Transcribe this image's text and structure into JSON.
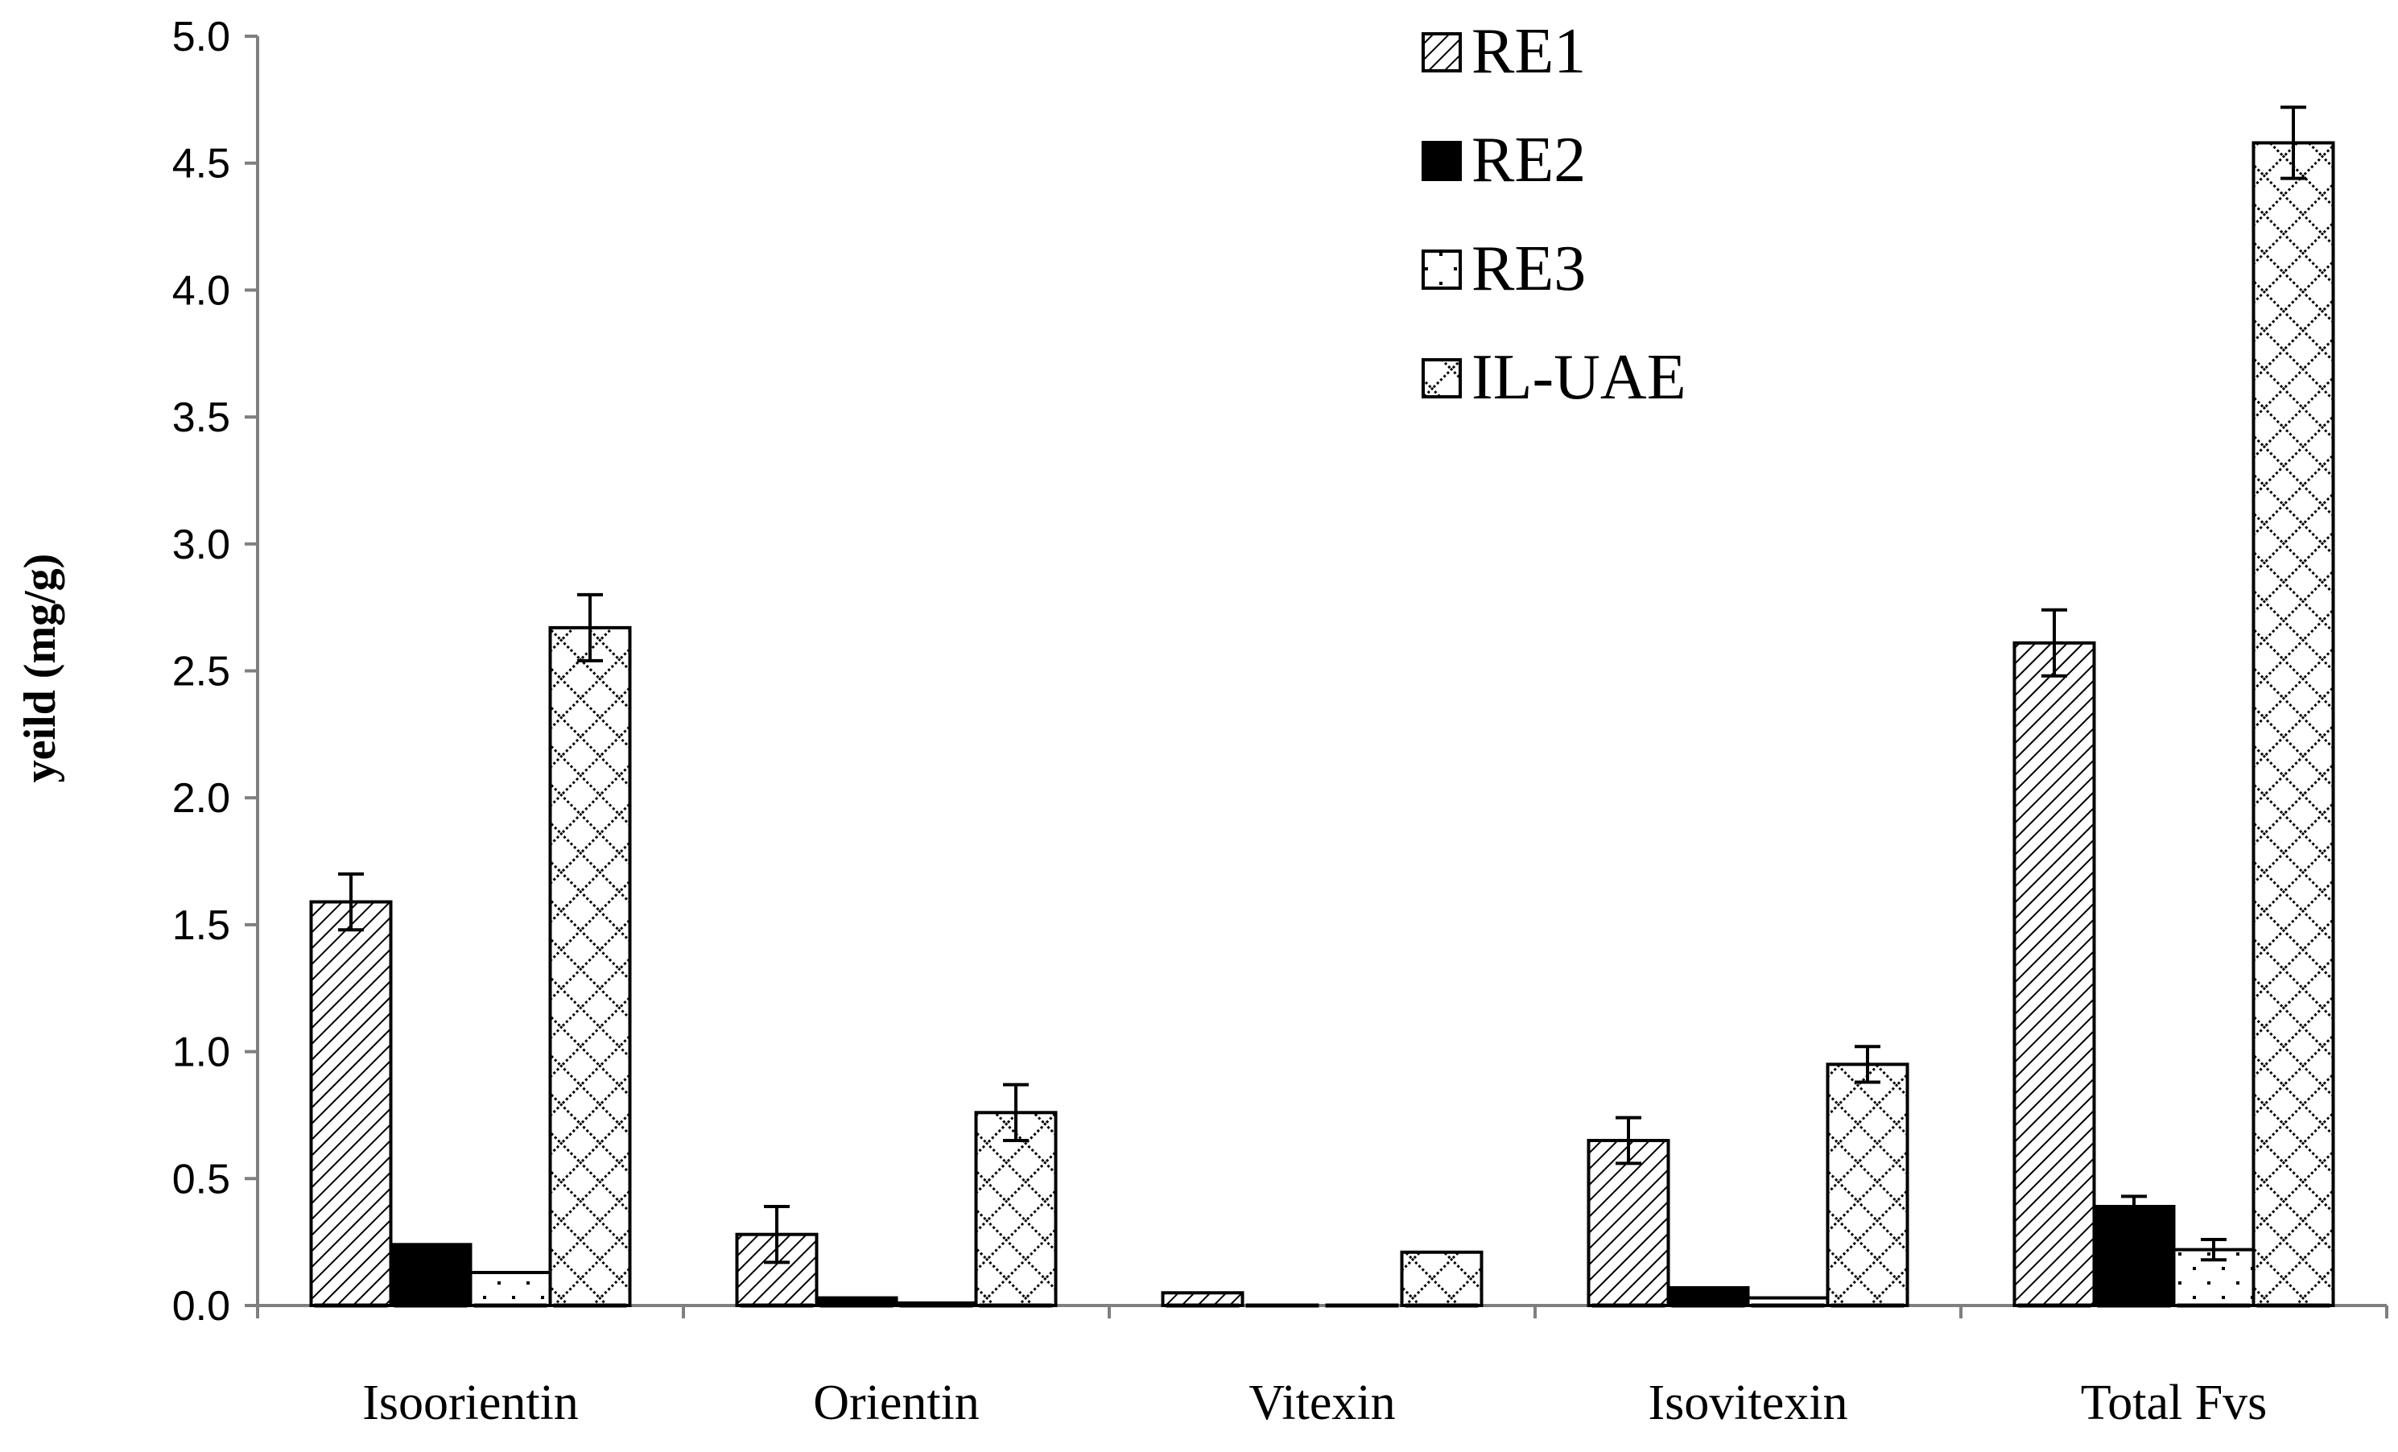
{
  "chart_data": {
    "type": "bar",
    "title": "",
    "xlabel": "",
    "ylabel": "yeild (mg/g)",
    "ylim": [
      0,
      5.0
    ],
    "yticks": [
      "0.0",
      "0.5",
      "1.0",
      "1.5",
      "2.0",
      "2.5",
      "3.0",
      "3.5",
      "4.0",
      "4.5",
      "5.0"
    ],
    "grid": false,
    "legend_position": "top-center",
    "categories": [
      "Isoorientin",
      "Orientin",
      "Vitexin",
      "Isovitexin",
      "Total Fvs"
    ],
    "series": [
      {
        "name": "RE1",
        "pattern": "diagonal-hatch",
        "values": [
          1.59,
          0.28,
          0.05,
          0.65,
          2.61
        ],
        "errors": [
          0.11,
          0.11,
          0.0,
          0.09,
          0.13
        ]
      },
      {
        "name": "RE2",
        "pattern": "solid-black",
        "values": [
          0.24,
          0.03,
          0.0,
          0.07,
          0.39
        ],
        "errors": [
          0.0,
          0.0,
          0.0,
          0.0,
          0.04
        ]
      },
      {
        "name": "RE3",
        "pattern": "dotted",
        "values": [
          0.13,
          0.01,
          0.0,
          0.03,
          0.22
        ],
        "errors": [
          0.0,
          0.0,
          0.0,
          0.0,
          0.04
        ]
      },
      {
        "name": "IL-UAE",
        "pattern": "cross-hatch",
        "values": [
          2.67,
          0.76,
          0.21,
          0.95,
          4.58
        ],
        "errors": [
          0.13,
          0.11,
          0.0,
          0.07,
          0.14
        ]
      }
    ]
  }
}
